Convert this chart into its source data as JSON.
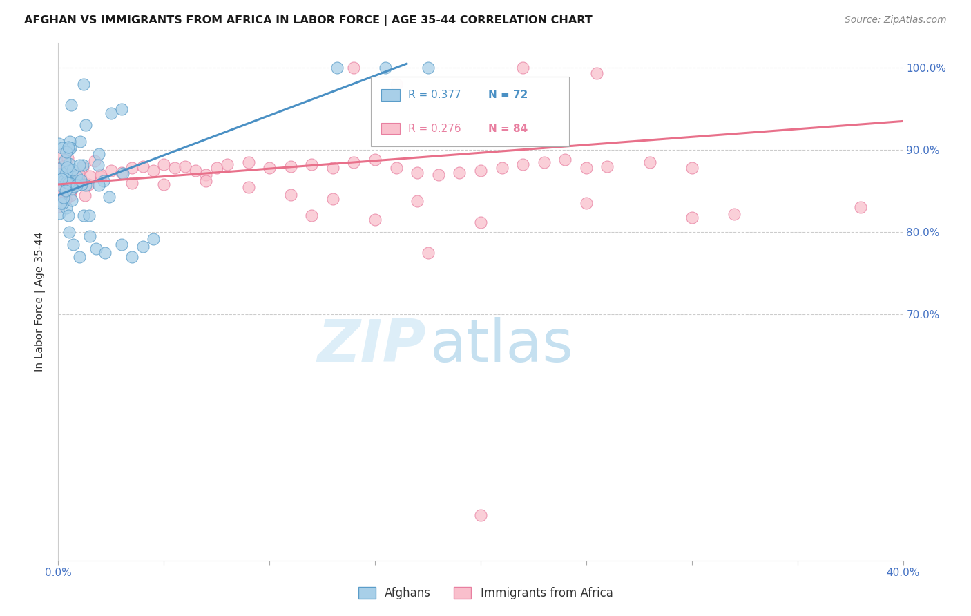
{
  "title": "AFGHAN VS IMMIGRANTS FROM AFRICA IN LABOR FORCE | AGE 35-44 CORRELATION CHART",
  "source": "Source: ZipAtlas.com",
  "ylabel": "In Labor Force | Age 35-44",
  "x_min": 0.0,
  "x_max": 0.4,
  "y_min": 0.4,
  "y_max": 1.03,
  "legend_blue_label": "Afghans",
  "legend_pink_label": "Immigrants from Africa",
  "blue_color": "#a8cfe8",
  "pink_color": "#f9bfcc",
  "blue_edge_color": "#5b9dc9",
  "pink_edge_color": "#e87fa0",
  "blue_line_color": "#4a90c4",
  "pink_line_color": "#e8708a",
  "blue_R": 0.377,
  "blue_N": 72,
  "pink_R": 0.276,
  "pink_N": 84,
  "grid_color": "#cccccc",
  "background_color": "#ffffff",
  "tick_color": "#4472c4",
  "right_axis_color": "#4472c4",
  "watermark_zip_color": "#ddeef8",
  "watermark_atlas_color": "#c5e0f0",
  "blue_line_x0": 0.0,
  "blue_line_y0": 0.845,
  "blue_line_x1": 0.165,
  "blue_line_y1": 1.005,
  "pink_line_x0": 0.0,
  "pink_line_y0": 0.858,
  "pink_line_x1": 0.4,
  "pink_line_y1": 0.935
}
